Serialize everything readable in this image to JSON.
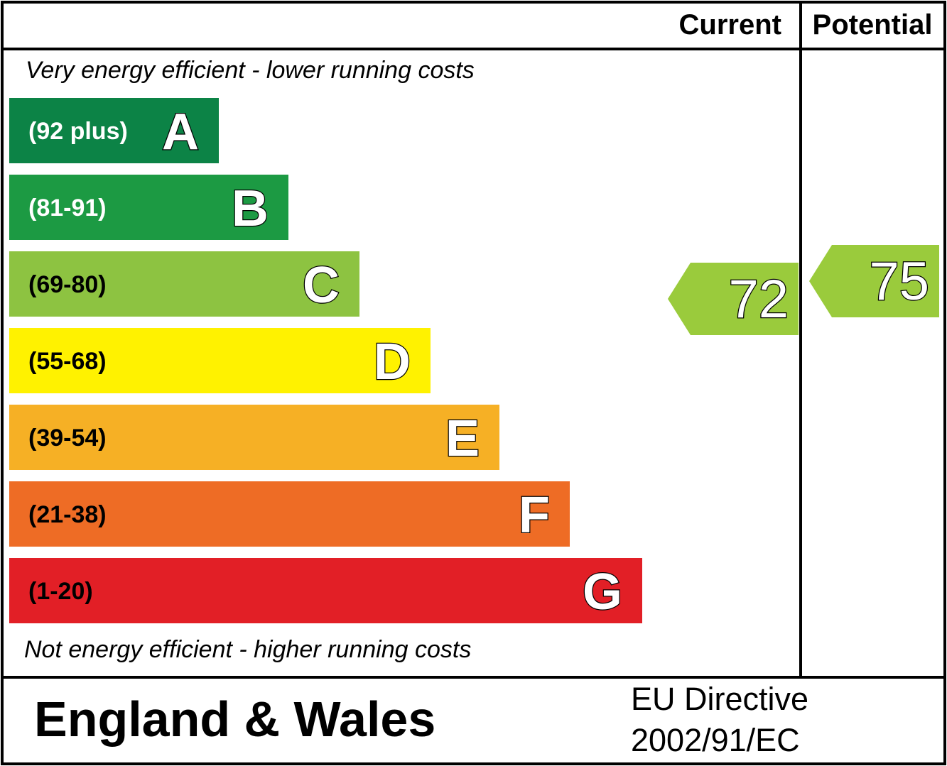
{
  "header": {
    "current_label": "Current",
    "potential_label": "Potential"
  },
  "top_note": "Very energy efficient - lower running costs",
  "bottom_note": "Not energy efficient - higher running costs",
  "footer": {
    "region": "England & Wales",
    "directive_line1": "EU Directive",
    "directive_line2": "2002/91/EC"
  },
  "chart_data": {
    "type": "bar",
    "categories": [
      "A",
      "B",
      "C",
      "D",
      "E",
      "F",
      "G"
    ],
    "ranges": [
      "(92 plus)",
      "(81-91)",
      "(69-80)",
      "(55-68)",
      "(39-54)",
      "(21-38)",
      "(1-20)"
    ],
    "colors": [
      "#0c8346",
      "#1c9a43",
      "#8dc341",
      "#fff200",
      "#f6b025",
      "#ee6c25",
      "#e21f26"
    ],
    "range_text_colors": [
      "#ffffff",
      "#ffffff",
      "#000000",
      "#000000",
      "#000000",
      "#000000",
      "#000000"
    ],
    "current": {
      "value": 72,
      "band": "C",
      "color": "#9acb3c"
    },
    "potential": {
      "value": 75,
      "band": "C",
      "color": "#9acb3c"
    }
  }
}
